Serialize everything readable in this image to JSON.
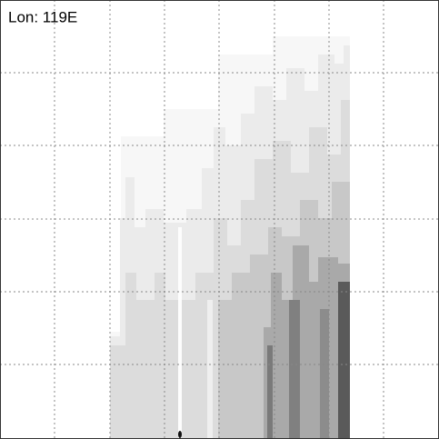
{
  "panel": {
    "label": "Lon: 119E"
  }
}
